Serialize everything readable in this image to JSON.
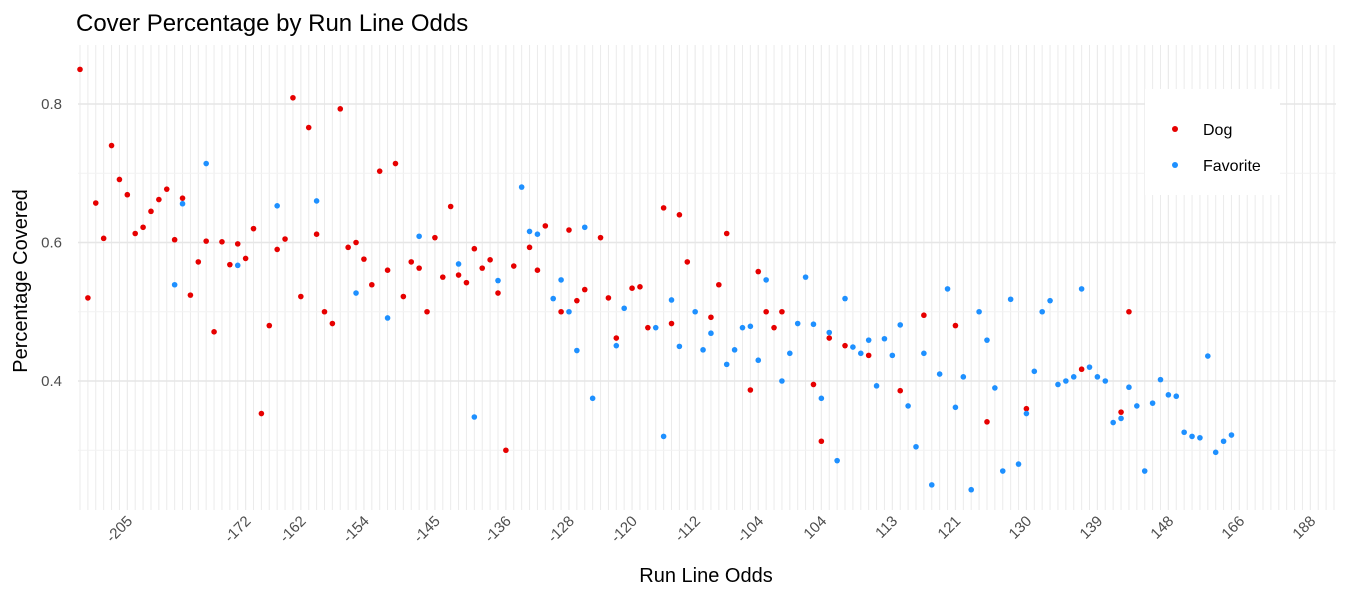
{
  "chart_data": {
    "type": "scatter",
    "title": "Cover Percentage by Run Line Odds",
    "xlabel": "Run Line Odds",
    "ylabel": "Percentage Covered",
    "x_axis_type": "categorical",
    "categories": [
      "-215",
      "-212",
      "-210",
      "-208",
      "-207",
      "-206",
      "-205",
      "-204",
      "-203",
      "-202",
      "-201",
      "-200",
      "-198",
      "-195",
      "-192",
      "-190",
      "-185",
      "-182",
      "-180",
      "-178",
      "-175",
      "-172",
      "-170",
      "-168",
      "-166",
      "-165",
      "-164",
      "-163",
      "-162",
      "-161",
      "-160",
      "-159",
      "-158",
      "-157",
      "-156",
      "-155",
      "-154",
      "-153",
      "-152",
      "-151",
      "-150",
      "-149",
      "-148",
      "-147",
      "-146",
      "-145",
      "-144",
      "-143",
      "-142",
      "-141",
      "-140",
      "-139",
      "-138",
      "-137",
      "-136",
      "-135",
      "-134",
      "-133",
      "-132",
      "-131",
      "-130",
      "-129",
      "-128",
      "-127",
      "-126",
      "-125",
      "-124",
      "-123",
      "-122",
      "-121",
      "-120",
      "-119",
      "-118",
      "-117",
      "-116",
      "-115",
      "-114",
      "-113",
      "-112",
      "-111",
      "-110",
      "-109",
      "-108",
      "-107",
      "-106",
      "-105",
      "-104",
      "-103",
      "-102",
      "-101",
      "100",
      "101",
      "102",
      "103",
      "104",
      "105",
      "106",
      "107",
      "108",
      "109",
      "110",
      "111",
      "112",
      "113",
      "114",
      "115",
      "116",
      "117",
      "118",
      "119",
      "120",
      "121",
      "122",
      "123",
      "124",
      "125",
      "126",
      "127",
      "128",
      "129",
      "130",
      "131",
      "132",
      "133",
      "134",
      "135",
      "136",
      "137",
      "138",
      "139",
      "140",
      "141",
      "142",
      "143",
      "144",
      "145",
      "146",
      "147",
      "148",
      "149",
      "150",
      "152",
      "155",
      "158",
      "160",
      "162",
      "164",
      "166",
      "168",
      "170",
      "172",
      "175",
      "178",
      "180",
      "182",
      "185",
      "188",
      "190",
      "195",
      "200"
    ],
    "x_tick_labels": [
      "-205",
      "-172",
      "-162",
      "-154",
      "-145",
      "-136",
      "-128",
      "-120",
      "-112",
      "-104",
      "104",
      "113",
      "121",
      "130",
      "139",
      "148",
      "166",
      "188"
    ],
    "y_ticks": [
      0.4,
      0.6,
      0.8
    ],
    "ylim": [
      0.215,
      0.875
    ],
    "grid": true,
    "legend_position": "right",
    "series": [
      {
        "name": "Dog",
        "color": "#e60000",
        "points": [
          [
            "-215",
            0.85
          ],
          [
            "-212",
            0.52
          ],
          [
            "-210",
            0.657
          ],
          [
            "-208",
            0.606
          ],
          [
            "-207",
            0.74
          ],
          [
            "-206",
            0.691
          ],
          [
            "-205",
            0.669
          ],
          [
            "-204",
            0.613
          ],
          [
            "-203",
            0.622
          ],
          [
            "-202",
            0.645
          ],
          [
            "-201",
            0.662
          ],
          [
            "-200",
            0.677
          ],
          [
            "-198",
            0.604
          ],
          [
            "-195",
            0.664
          ],
          [
            "-192",
            0.524
          ],
          [
            "-190",
            0.572
          ],
          [
            "-185",
            0.602
          ],
          [
            "-182",
            0.471
          ],
          [
            "-180",
            0.601
          ],
          [
            "-178",
            0.568
          ],
          [
            "-175",
            0.598
          ],
          [
            "-172",
            0.577
          ],
          [
            "-170",
            0.62
          ],
          [
            "-168",
            0.353
          ],
          [
            "-166",
            0.48
          ],
          [
            "-165",
            0.59
          ],
          [
            "-164",
            0.605
          ],
          [
            "-163",
            0.809
          ],
          [
            "-162",
            0.522
          ],
          [
            "-161",
            0.766
          ],
          [
            "-160",
            0.612
          ],
          [
            "-159",
            0.5
          ],
          [
            "-158",
            0.483
          ],
          [
            "-157",
            0.793
          ],
          [
            "-156",
            0.593
          ],
          [
            "-155",
            0.6
          ],
          [
            "-154",
            0.576
          ],
          [
            "-153",
            0.539
          ],
          [
            "-152",
            0.703
          ],
          [
            "-151",
            0.56
          ],
          [
            "-150",
            0.714
          ],
          [
            "-149",
            0.522
          ],
          [
            "-148",
            0.572
          ],
          [
            "-147",
            0.563
          ],
          [
            "-146",
            0.5
          ],
          [
            "-145",
            0.607
          ],
          [
            "-144",
            0.55
          ],
          [
            "-143",
            0.652
          ],
          [
            "-142",
            0.553
          ],
          [
            "-141",
            0.542
          ],
          [
            "-140",
            0.591
          ],
          [
            "-139",
            0.563
          ],
          [
            "-138",
            0.575
          ],
          [
            "-137",
            0.527
          ],
          [
            "-136",
            0.3
          ],
          [
            "-135",
            0.566
          ],
          [
            "-133",
            0.593
          ],
          [
            "-132",
            0.56
          ],
          [
            "-131",
            0.624
          ],
          [
            "-129",
            0.5
          ],
          [
            "-128",
            0.618
          ],
          [
            "-127",
            0.516
          ],
          [
            "-126",
            0.532
          ],
          [
            "-124",
            0.607
          ],
          [
            "-123",
            0.52
          ],
          [
            "-122",
            0.462
          ],
          [
            "-120",
            0.534
          ],
          [
            "-119",
            0.536
          ],
          [
            "-118",
            0.477
          ],
          [
            "-116",
            0.65
          ],
          [
            "-115",
            0.483
          ],
          [
            "-114",
            0.64
          ],
          [
            "-113",
            0.572
          ],
          [
            "-110",
            0.492
          ],
          [
            "-109",
            0.539
          ],
          [
            "-108",
            0.613
          ],
          [
            "-105",
            0.387
          ],
          [
            "-104",
            0.558
          ],
          [
            "-103",
            0.5
          ],
          [
            "-102",
            0.477
          ],
          [
            "-101",
            0.5
          ],
          [
            "103",
            0.395
          ],
          [
            "104",
            0.313
          ],
          [
            "105",
            0.462
          ],
          [
            "107",
            0.451
          ],
          [
            "110",
            0.437
          ],
          [
            "114",
            0.386
          ],
          [
            "117",
            0.495
          ],
          [
            "121",
            0.48
          ],
          [
            "125",
            0.341
          ],
          [
            "130",
            0.36
          ],
          [
            "137",
            0.417
          ],
          [
            "142",
            0.355
          ],
          [
            "143",
            0.5
          ]
        ]
      },
      {
        "name": "Favorite",
        "color": "#1e90ff",
        "points": [
          [
            "-198",
            0.539
          ],
          [
            "-195",
            0.656
          ],
          [
            "-185",
            0.714
          ],
          [
            "-175",
            0.567
          ],
          [
            "-165",
            0.653
          ],
          [
            "-160",
            0.66
          ],
          [
            "-155",
            0.527
          ],
          [
            "-151",
            0.491
          ],
          [
            "-147",
            0.609
          ],
          [
            "-142",
            0.569
          ],
          [
            "-140",
            0.348
          ],
          [
            "-137",
            0.545
          ],
          [
            "-134",
            0.68
          ],
          [
            "-133",
            0.616
          ],
          [
            "-132",
            0.612
          ],
          [
            "-130",
            0.519
          ],
          [
            "-129",
            0.546
          ],
          [
            "-128",
            0.5
          ],
          [
            "-127",
            0.444
          ],
          [
            "-126",
            0.622
          ],
          [
            "-125",
            0.375
          ],
          [
            "-122",
            0.451
          ],
          [
            "-121",
            0.505
          ],
          [
            "-117",
            0.477
          ],
          [
            "-116",
            0.32
          ],
          [
            "-115",
            0.517
          ],
          [
            "-114",
            0.45
          ],
          [
            "-112",
            0.5
          ],
          [
            "-111",
            0.445
          ],
          [
            "-110",
            0.469
          ],
          [
            "-108",
            0.424
          ],
          [
            "-107",
            0.445
          ],
          [
            "-106",
            0.477
          ],
          [
            "-105",
            0.479
          ],
          [
            "-104",
            0.43
          ],
          [
            "-103",
            0.546
          ],
          [
            "-101",
            0.4
          ],
          [
            "100",
            0.44
          ],
          [
            "101",
            0.483
          ],
          [
            "102",
            0.55
          ],
          [
            "103",
            0.482
          ],
          [
            "104",
            0.375
          ],
          [
            "105",
            0.47
          ],
          [
            "106",
            0.285
          ],
          [
            "107",
            0.519
          ],
          [
            "108",
            0.449
          ],
          [
            "109",
            0.44
          ],
          [
            "110",
            0.459
          ],
          [
            "111",
            0.393
          ],
          [
            "112",
            0.461
          ],
          [
            "113",
            0.437
          ],
          [
            "114",
            0.481
          ],
          [
            "115",
            0.364
          ],
          [
            "116",
            0.305
          ],
          [
            "117",
            0.44
          ],
          [
            "118",
            0.25
          ],
          [
            "119",
            0.41
          ],
          [
            "120",
            0.533
          ],
          [
            "121",
            0.362
          ],
          [
            "122",
            0.406
          ],
          [
            "123",
            0.243
          ],
          [
            "124",
            0.5
          ],
          [
            "125",
            0.459
          ],
          [
            "126",
            0.39
          ],
          [
            "127",
            0.27
          ],
          [
            "128",
            0.518
          ],
          [
            "129",
            0.28
          ],
          [
            "130",
            0.353
          ],
          [
            "131",
            0.414
          ],
          [
            "132",
            0.5
          ],
          [
            "133",
            0.516
          ],
          [
            "134",
            0.395
          ],
          [
            "135",
            0.4
          ],
          [
            "136",
            0.406
          ],
          [
            "137",
            0.533
          ],
          [
            "138",
            0.42
          ],
          [
            "139",
            0.406
          ],
          [
            "140",
            0.4
          ],
          [
            "141",
            0.34
          ],
          [
            "142",
            0.346
          ],
          [
            "143",
            0.391
          ],
          [
            "144",
            0.364
          ],
          [
            "145",
            0.27
          ],
          [
            "146",
            0.368
          ],
          [
            "147",
            0.402
          ],
          [
            "148",
            0.38
          ],
          [
            "149",
            0.378
          ],
          [
            "150",
            0.326
          ],
          [
            "152",
            0.32
          ],
          [
            "155",
            0.318
          ],
          [
            "158",
            0.436
          ],
          [
            "160",
            0.297
          ],
          [
            "162",
            0.313
          ],
          [
            "164",
            0.322
          ]
        ]
      }
    ]
  }
}
